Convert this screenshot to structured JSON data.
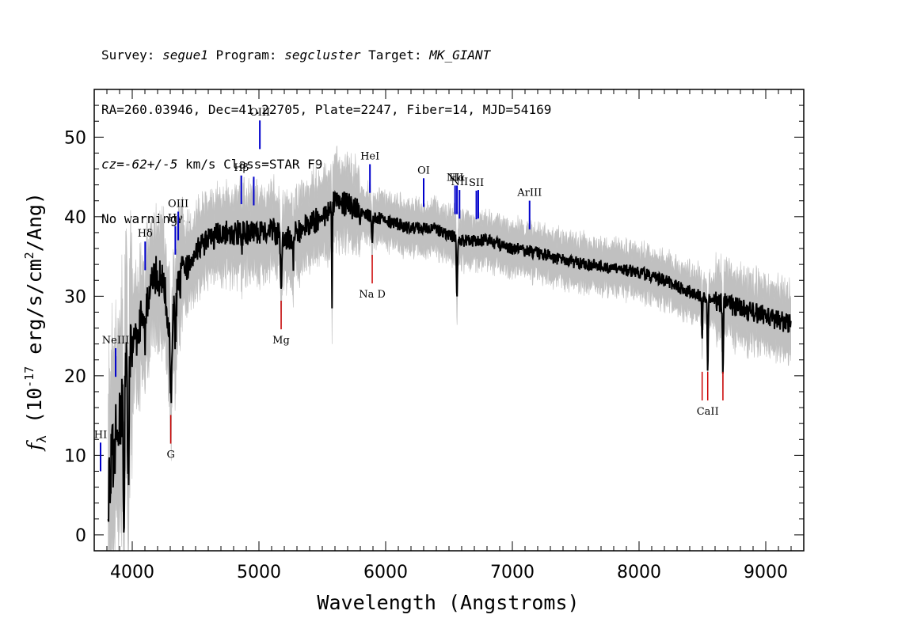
{
  "header": {
    "line1": [
      {
        "t": "Survey: ",
        "i": false
      },
      {
        "t": "segue1",
        "i": true
      },
      {
        "t": " Program: ",
        "i": false
      },
      {
        "t": "segcluster",
        "i": true
      },
      {
        "t": " Target: ",
        "i": false
      },
      {
        "t": "MK_GIANT",
        "i": true
      }
    ],
    "line2": "RA=260.03946, Dec=41.22705, Plate=2247, Fiber=14, MJD=54169",
    "line3": [
      {
        "t": "cz=-62+/-5",
        "i": true
      },
      {
        "t": " km/s Class=STAR F9",
        "i": false
      }
    ],
    "line4": "No warnings."
  },
  "chart_data": {
    "type": "line",
    "xlabel": "Wavelength (Angstroms)",
    "ylabel_parts": {
      "f": "f",
      "sub": "λ",
      "pre": " (10",
      "exp1": "-17",
      "mid": " erg/s/cm",
      "exp2": "2",
      "post": "/Ang)"
    },
    "xlim": [
      3700,
      9300
    ],
    "ylim": [
      -2,
      56
    ],
    "xticks": [
      4000,
      5000,
      6000,
      7000,
      8000,
      9000
    ],
    "yticks": [
      0,
      10,
      20,
      30,
      40,
      50
    ],
    "colors": {
      "flux": "#000000",
      "error_band": "#c0c0c0",
      "emission": "#0000cc",
      "absorption": "#cc0000"
    },
    "spectrum_anchor": {
      "x": [
        3800,
        3850,
        3900,
        3950,
        4000,
        4050,
        4100,
        4150,
        4200,
        4250,
        4300,
        4350,
        4400,
        4450,
        4500,
        4600,
        4700,
        4800,
        4900,
        5000,
        5100,
        5200,
        5300,
        5400,
        5500,
        5600,
        5700,
        5800,
        5900,
        6000,
        6200,
        6400,
        6600,
        6800,
        7000,
        7200,
        7400,
        7600,
        7800,
        8000,
        8200,
        8400,
        8600,
        8800,
        9000,
        9100,
        9200
      ],
      "y": [
        5,
        10,
        15,
        20,
        23,
        26,
        29,
        31,
        33,
        31,
        26,
        30,
        33,
        34,
        36,
        37,
        38,
        38,
        38,
        38,
        38.5,
        37,
        38,
        39,
        40,
        42,
        41.5,
        40.5,
        40,
        39.5,
        38.5,
        38.5,
        37,
        37,
        36,
        35.5,
        34.5,
        34,
        33.5,
        33,
        32,
        30.5,
        29.5,
        28.5,
        27.5,
        27,
        26.5
      ]
    },
    "dips": [
      {
        "x": 3889,
        "depth": 5,
        "w": 5
      },
      {
        "x": 3934,
        "depth": 18,
        "w": 6
      },
      {
        "x": 3969,
        "depth": 14,
        "w": 6
      },
      {
        "x": 4102,
        "depth": 5,
        "w": 6
      },
      {
        "x": 4305,
        "depth": 10,
        "w": 10
      },
      {
        "x": 4341,
        "depth": 4,
        "w": 6
      },
      {
        "x": 4861,
        "depth": 3,
        "w": 6
      },
      {
        "x": 5175,
        "depth": 6,
        "w": 8
      },
      {
        "x": 5270,
        "depth": 3,
        "w": 6
      },
      {
        "x": 5577,
        "depth": 12,
        "w": 3
      },
      {
        "x": 5893,
        "depth": 3,
        "w": 6
      },
      {
        "x": 6563,
        "depth": 7,
        "w": 6
      },
      {
        "x": 8498,
        "depth": 5,
        "w": 5
      },
      {
        "x": 8542,
        "depth": 9,
        "w": 5
      },
      {
        "x": 8662,
        "depth": 8,
        "w": 5
      }
    ],
    "emission_lines": [
      {
        "label": "HI",
        "x": 3750
      },
      {
        "label": "NeIII",
        "x": 3869
      },
      {
        "label": "Hδ",
        "x": 4102
      },
      {
        "label": "Hγ",
        "x": 4340
      },
      {
        "label": "OIII",
        "x": 4363
      },
      {
        "label": "Hβ",
        "x": 4861
      },
      {
        "label": "",
        "x": 4959
      },
      {
        "label": "OIII",
        "x": 5007
      },
      {
        "label": "HeI",
        "x": 5876
      },
      {
        "label": "OI",
        "x": 6300
      },
      {
        "label": "NII",
        "x": 6548
      },
      {
        "label": "Hα",
        "x": 6563
      },
      {
        "label": "NII",
        "x": 6583
      },
      {
        "label": "SII",
        "x": 6716
      },
      {
        "label": "",
        "x": 6731
      },
      {
        "label": "ArIII",
        "x": 7136
      }
    ],
    "absorption_lines": [
      {
        "label": "G",
        "x": 4304
      },
      {
        "label": "Mg",
        "x": 5175
      },
      {
        "label": "Na D",
        "x": 5894
      },
      {
        "label": "",
        "x": 8498
      },
      {
        "label": "CaII",
        "x": 8542
      },
      {
        "label": "",
        "x": 8662
      }
    ]
  }
}
